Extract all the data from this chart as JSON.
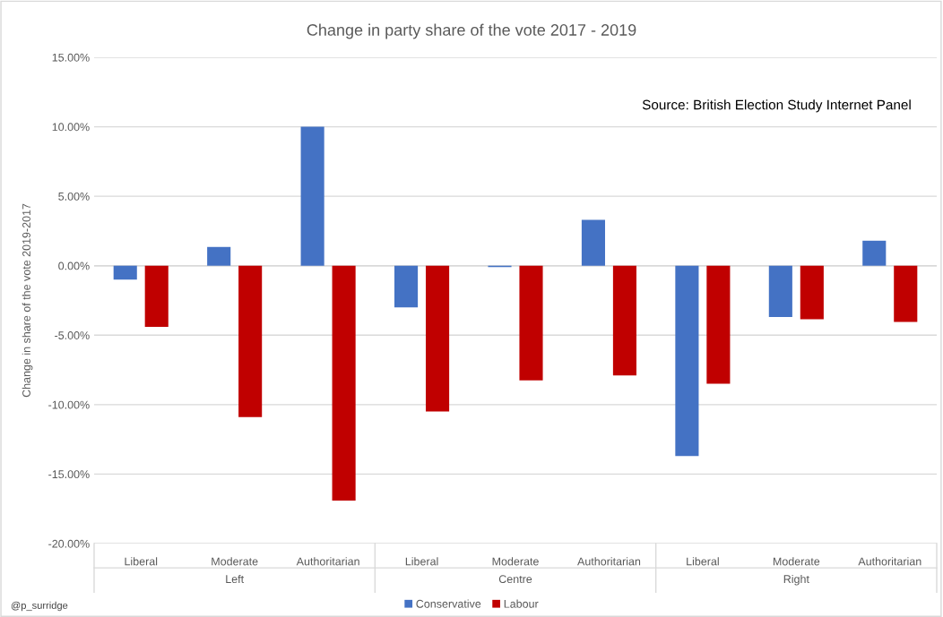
{
  "chart_data": {
    "type": "bar",
    "title": "Change in party share of the vote 2017 - 2019",
    "ylabel": "Change in share of the vote 2019-2017",
    "categories": [
      "Liberal",
      "Moderate",
      "Authoritarian",
      "Liberal",
      "Moderate",
      "Authoritarian",
      "Liberal",
      "Moderate",
      "Authoritarian"
    ],
    "series": [
      {
        "name": "Conservative",
        "color": "#4472c4",
        "values": [
          -1.0,
          1.35,
          10.0,
          -3.0,
          -0.1,
          3.3,
          -13.7,
          -3.7,
          1.8
        ]
      },
      {
        "name": "Labour",
        "color": "#c00000",
        "values": [
          -4.4,
          -10.9,
          -16.9,
          -10.5,
          -8.25,
          -7.9,
          -8.5,
          -3.85,
          -4.05
        ]
      }
    ],
    "ylim": [
      -20,
      15
    ],
    "yticks": [
      {
        "value": -20,
        "label": "-20.00%"
      },
      {
        "value": -15,
        "label": "-15.00%"
      },
      {
        "value": -10,
        "label": "-10.00%"
      },
      {
        "value": -5,
        "label": "-5.00%"
      },
      {
        "value": 0,
        "label": "0.00%"
      },
      {
        "value": 5,
        "label": "5.00%"
      },
      {
        "value": 10,
        "label": "10.00%"
      },
      {
        "value": 15,
        "label": "15.00%"
      }
    ],
    "annotations": [
      "Left",
      "Centre",
      "Right",
      "Source: British Election Study Internet Panel",
      "@p_surridge"
    ],
    "grid": "y",
    "legend": "bottom"
  }
}
